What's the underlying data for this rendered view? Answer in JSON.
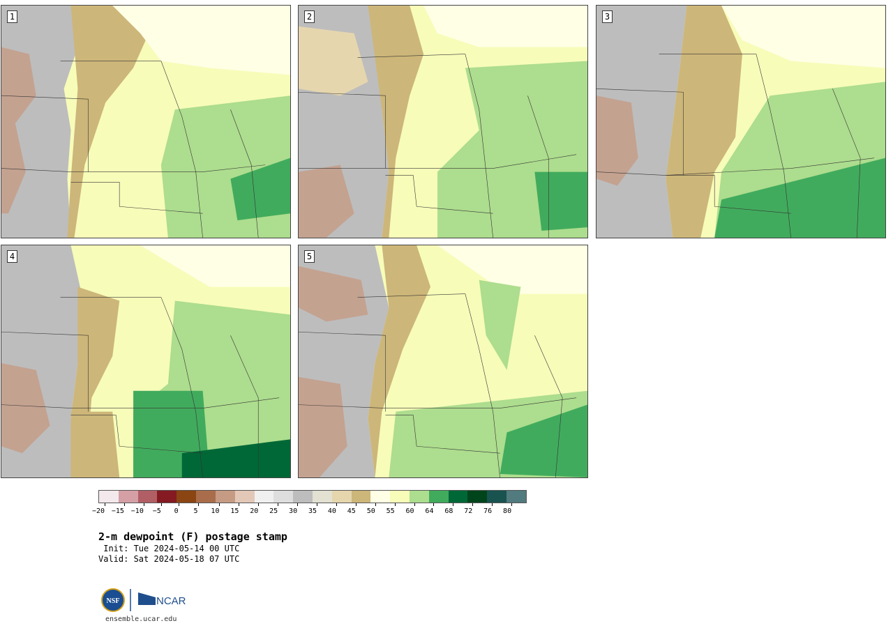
{
  "panels": [
    {
      "label": "1"
    },
    {
      "label": "2"
    },
    {
      "label": "3"
    },
    {
      "label": "4"
    },
    {
      "label": "5"
    }
  ],
  "colorbar": {
    "colors": [
      "#f3e9ec",
      "#d4a0a6",
      "#b15f65",
      "#851a22",
      "#8a4512",
      "#a96d4b",
      "#c69b84",
      "#e3c8b8",
      "#f0f0f0",
      "#dedede",
      "#bdbdbd",
      "#e2e1d2",
      "#e6d6ae",
      "#cdb679",
      "#ffffe5",
      "#f7fcb9",
      "#addd8e",
      "#41ab5d",
      "#006837",
      "#00441b",
      "#185350",
      "#517b7e"
    ],
    "ticks": [
      "−20",
      "−15",
      "−10",
      "−5",
      "0",
      "5",
      "10",
      "15",
      "20",
      "25",
      "30",
      "35",
      "40",
      "45",
      "50",
      "55",
      "60",
      "64",
      "68",
      "72",
      "76",
      "80"
    ]
  },
  "title": "2-m dewpoint (F) postage stamp",
  "init": " Init: Tue 2024-05-14 00 UTC",
  "valid": "Valid: Sat 2024-05-18 07 UTC",
  "logos": {
    "nsf": "NSF",
    "ncar": "NCAR"
  },
  "url": "ensemble.ucar.edu"
}
